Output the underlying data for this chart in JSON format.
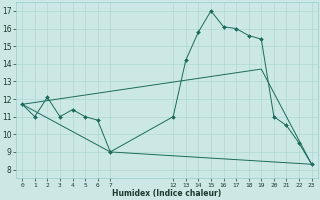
{
  "title": "",
  "xlabel": "Humidex (Indice chaleur)",
  "background_color": "#cce8e4",
  "grid_color": "#b0d8d0",
  "line_color": "#1a6b5a",
  "xlim": [
    -0.5,
    23.5
  ],
  "ylim": [
    7.5,
    17.5
  ],
  "xticks": [
    0,
    1,
    2,
    3,
    4,
    5,
    6,
    7,
    12,
    13,
    14,
    15,
    16,
    17,
    18,
    19,
    20,
    21,
    22,
    23
  ],
  "yticks": [
    8,
    9,
    10,
    11,
    12,
    13,
    14,
    15,
    16,
    17
  ],
  "series_main": {
    "x": [
      0,
      1,
      2,
      3,
      4,
      5,
      6,
      7,
      12,
      13,
      14,
      15,
      16,
      17,
      18,
      19,
      20,
      21,
      22,
      23
    ],
    "y": [
      11.7,
      11.0,
      12.1,
      11.0,
      11.4,
      11.0,
      10.8,
      9.0,
      11.0,
      14.2,
      15.8,
      17.0,
      16.1,
      16.0,
      15.6,
      15.4,
      11.0,
      10.5,
      9.5,
      8.3
    ]
  },
  "series_extra": [
    {
      "x": [
        0,
        7,
        23
      ],
      "y": [
        11.7,
        9.0,
        8.3
      ]
    },
    {
      "x": [
        0,
        19,
        23
      ],
      "y": [
        11.7,
        13.7,
        8.3
      ]
    }
  ]
}
